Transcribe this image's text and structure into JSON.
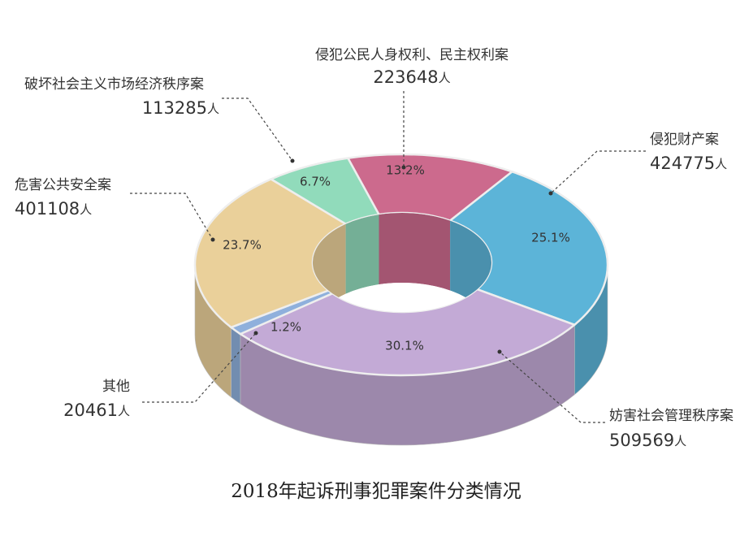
{
  "chart_data": {
    "type": "pie",
    "title": "2018年起诉刑事犯罪案件分类情况",
    "categories": [
      "侵犯公民人身权利、民主权利案",
      "侵犯财产案",
      "妨害社会管理秩序案",
      "其他",
      "危害公共安全案",
      "破坏社会主义市场经济秩序案"
    ],
    "values": [
      13.2,
      25.1,
      30.1,
      1.2,
      23.7,
      6.7
    ],
    "value_labels": [
      "13.2%",
      "25.1%",
      "30.1%",
      "1.2%",
      "23.7%",
      "6.7%"
    ],
    "counts": [
      223648,
      424775,
      509569,
      20461,
      401108,
      113285
    ],
    "unit": "人",
    "colors": [
      "#cc6a8d",
      "#5cb4d8",
      "#c3aad6",
      "#8fb0dc",
      "#ead09a",
      "#91dbbb"
    ],
    "donut": true,
    "three_d": true
  }
}
